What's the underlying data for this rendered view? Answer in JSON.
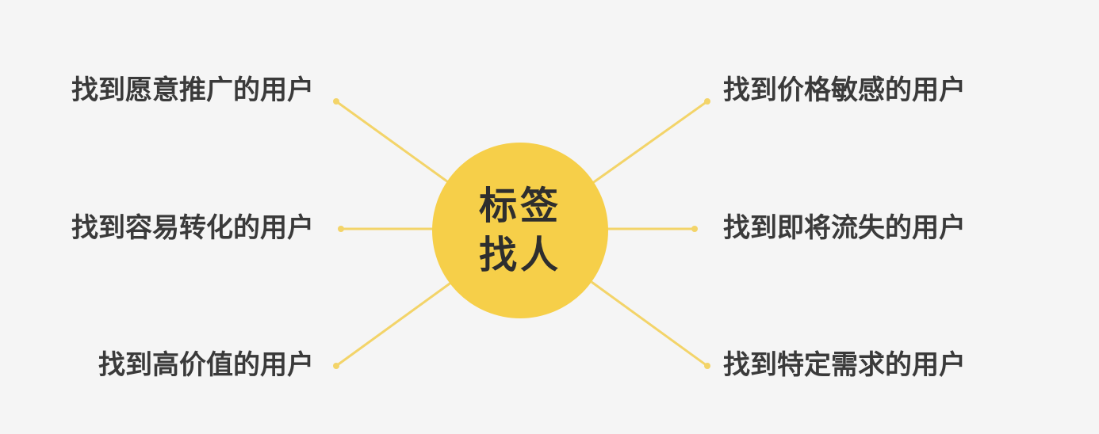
{
  "center": {
    "line1": "标签",
    "line2": "找人"
  },
  "branches_left": [
    "找到愿意推广的用户",
    "找到容易转化的用户",
    "找到高价值的用户"
  ],
  "branches_right": [
    "找到价格敏感的用户",
    "找到即将流失的用户",
    "找到特定需求的用户"
  ],
  "colors": {
    "background": "#f5f5f5",
    "hub": "#f6cf49",
    "connector": "#f3d469",
    "text": "#3a3a3a"
  }
}
